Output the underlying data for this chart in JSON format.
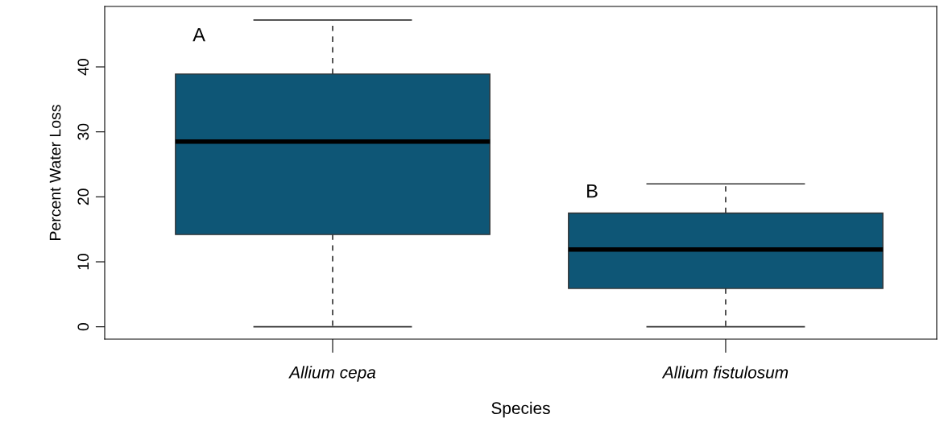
{
  "chart_data": {
    "type": "box",
    "xlabel": "Species",
    "ylabel": "Percent Water Loss",
    "categories": [
      "Allium cepa",
      "Allium fistulosum"
    ],
    "series": [
      {
        "color": "#0e5676",
        "boxes": [
          {
            "low": 0,
            "q1": 14.2,
            "median": 28.5,
            "q3": 38.9,
            "high": 47.2
          },
          {
            "low": 0,
            "q1": 5.9,
            "median": 11.9,
            "q3": 17.5,
            "high": 22.0
          }
        ]
      }
    ],
    "ylim": [
      -1.9,
      49.3
    ],
    "yticks": [
      0,
      10,
      20,
      30,
      40
    ],
    "annotations": [
      "A",
      "B"
    ],
    "grid": false,
    "legend": false
  }
}
